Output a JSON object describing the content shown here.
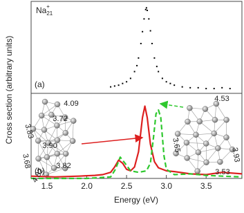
{
  "chart_data": [
    {
      "type": "scatter",
      "label": "(a)",
      "species": {
        "base": "Na",
        "subscript": "21",
        "superscript": "+"
      },
      "color": "#000000",
      "xlim": [
        1.3,
        3.95
      ],
      "ylim": [
        0,
        1.05
      ],
      "x": [
        2.3,
        2.35,
        2.4,
        2.45,
        2.5,
        2.55,
        2.6,
        2.63,
        2.65,
        2.68,
        2.7,
        2.72,
        2.74,
        2.75,
        2.76,
        2.78,
        2.8,
        2.82,
        2.85,
        2.88,
        2.9,
        2.95,
        3.0,
        3.05,
        3.1,
        3.2,
        3.3,
        3.4,
        3.5,
        3.6,
        3.7,
        3.8
      ],
      "values": [
        0.06,
        0.07,
        0.08,
        0.1,
        0.12,
        0.16,
        0.24,
        0.31,
        0.4,
        0.57,
        0.71,
        0.86,
        0.97,
        0.99,
        0.96,
        0.86,
        0.72,
        0.57,
        0.4,
        0.3,
        0.24,
        0.16,
        0.12,
        0.1,
        0.08,
        0.06,
        0.05,
        0.05,
        0.04,
        0.04,
        0.05,
        0.04
      ]
    },
    {
      "type": "line",
      "label": "(b)",
      "xlabel": "Energy (eV)",
      "ylabel": "Cross section (arbitrary units)",
      "xlim": [
        1.3,
        3.95
      ],
      "ylim": [
        0,
        1.1
      ],
      "xticks": [
        1.5,
        {
          "value": 2,
          "label": "2.0"
        },
        2.5,
        {
          "value": 3,
          "label": "3.0"
        },
        3.5
      ],
      "series": [
        {
          "color": "#dd1f1f",
          "dashed": false,
          "x": [
            1.3,
            1.6,
            1.9,
            2.1,
            2.2,
            2.3,
            2.35,
            2.4,
            2.45,
            2.5,
            2.55,
            2.6,
            2.65,
            2.7,
            2.73,
            2.76,
            2.8,
            2.85,
            2.9,
            3.0,
            3.1,
            3.3,
            3.5,
            3.7,
            3.95
          ],
          "values": [
            0.03,
            0.02,
            0.03,
            0.04,
            0.05,
            0.08,
            0.15,
            0.24,
            0.2,
            0.12,
            0.1,
            0.15,
            0.35,
            0.8,
            0.95,
            0.8,
            0.45,
            0.22,
            0.14,
            0.1,
            0.09,
            0.06,
            0.05,
            0.08,
            0.06
          ]
        },
        {
          "color": "#2ec82e",
          "dashed": true,
          "x": [
            1.3,
            2.0,
            2.3,
            2.36,
            2.42,
            2.48,
            2.55,
            2.65,
            2.75,
            2.8,
            2.84,
            2.87,
            2.9,
            2.93,
            2.97,
            3.0,
            3.1,
            3.3,
            3.5,
            3.7,
            3.95
          ],
          "values": [
            0.0,
            0.0,
            0.02,
            0.12,
            0.28,
            0.2,
            0.1,
            0.08,
            0.1,
            0.2,
            0.55,
            0.85,
            0.9,
            0.8,
            0.3,
            0.12,
            0.05,
            0.06,
            0.04,
            0.03,
            0.02
          ]
        }
      ],
      "annotations": [
        "4.09",
        "3.72",
        "3.83",
        "3.90",
        "3.68",
        "3.82",
        "4.82",
        "4.53",
        "3.65",
        "3.93",
        "3.53"
      ]
    }
  ]
}
